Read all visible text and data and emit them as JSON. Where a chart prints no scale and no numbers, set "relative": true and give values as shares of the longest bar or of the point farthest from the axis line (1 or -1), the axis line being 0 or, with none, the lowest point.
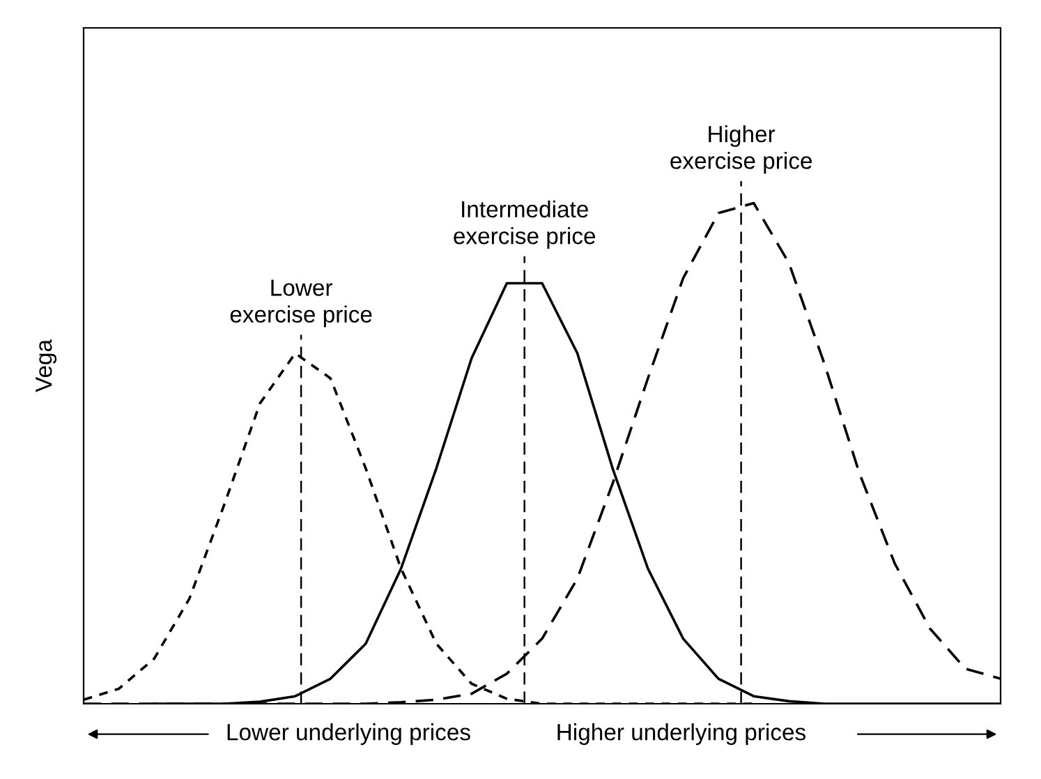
{
  "chart_data": {
    "type": "line",
    "relative": true,
    "ylabel": "Vega",
    "categories": [
      null,
      null,
      null,
      null,
      null,
      null,
      null,
      null,
      null,
      null,
      null,
      null,
      null,
      null,
      null,
      null,
      null,
      null,
      null,
      null,
      null,
      null,
      null,
      null,
      null,
      null,
      null
    ],
    "series": [
      {
        "name": "Lower\nexercise price",
        "color": "#000000",
        "line_style": "dotted",
        "values": [
          0.008,
          0.03,
          0.09,
          0.21,
          0.4,
          0.6,
          0.7,
          0.65,
          0.47,
          0.27,
          0.12,
          0.04,
          0.01,
          0,
          0,
          0,
          0,
          0,
          0,
          0,
          null,
          null,
          null,
          null,
          null,
          null,
          null
        ]
      },
      {
        "name": "Intermediate\nexercise price",
        "color": "#000000",
        "line_style": "solid",
        "values": [
          null,
          null,
          0,
          0,
          0,
          0.004,
          0.015,
          0.05,
          0.12,
          0.27,
          0.47,
          0.69,
          0.84,
          0.84,
          0.7,
          0.47,
          0.27,
          0.13,
          0.05,
          0.015,
          0.005,
          0,
          0,
          0,
          0,
          0,
          0
        ]
      },
      {
        "name": "Higher\nexercise price",
        "color": "#000000",
        "line_style": "dashed",
        "values": [
          0,
          0,
          0,
          0,
          0,
          0,
          0,
          0,
          0,
          0.003,
          0.008,
          0.02,
          0.06,
          0.13,
          0.25,
          0.44,
          0.65,
          0.85,
          0.98,
          1.0,
          0.88,
          0.68,
          0.46,
          0.28,
          0.15,
          0.07,
          0.05
        ]
      }
    ],
    "annotations": [
      "Lower underlying prices",
      "Higher underlying prices"
    ],
    "grid": false,
    "legend": false
  }
}
